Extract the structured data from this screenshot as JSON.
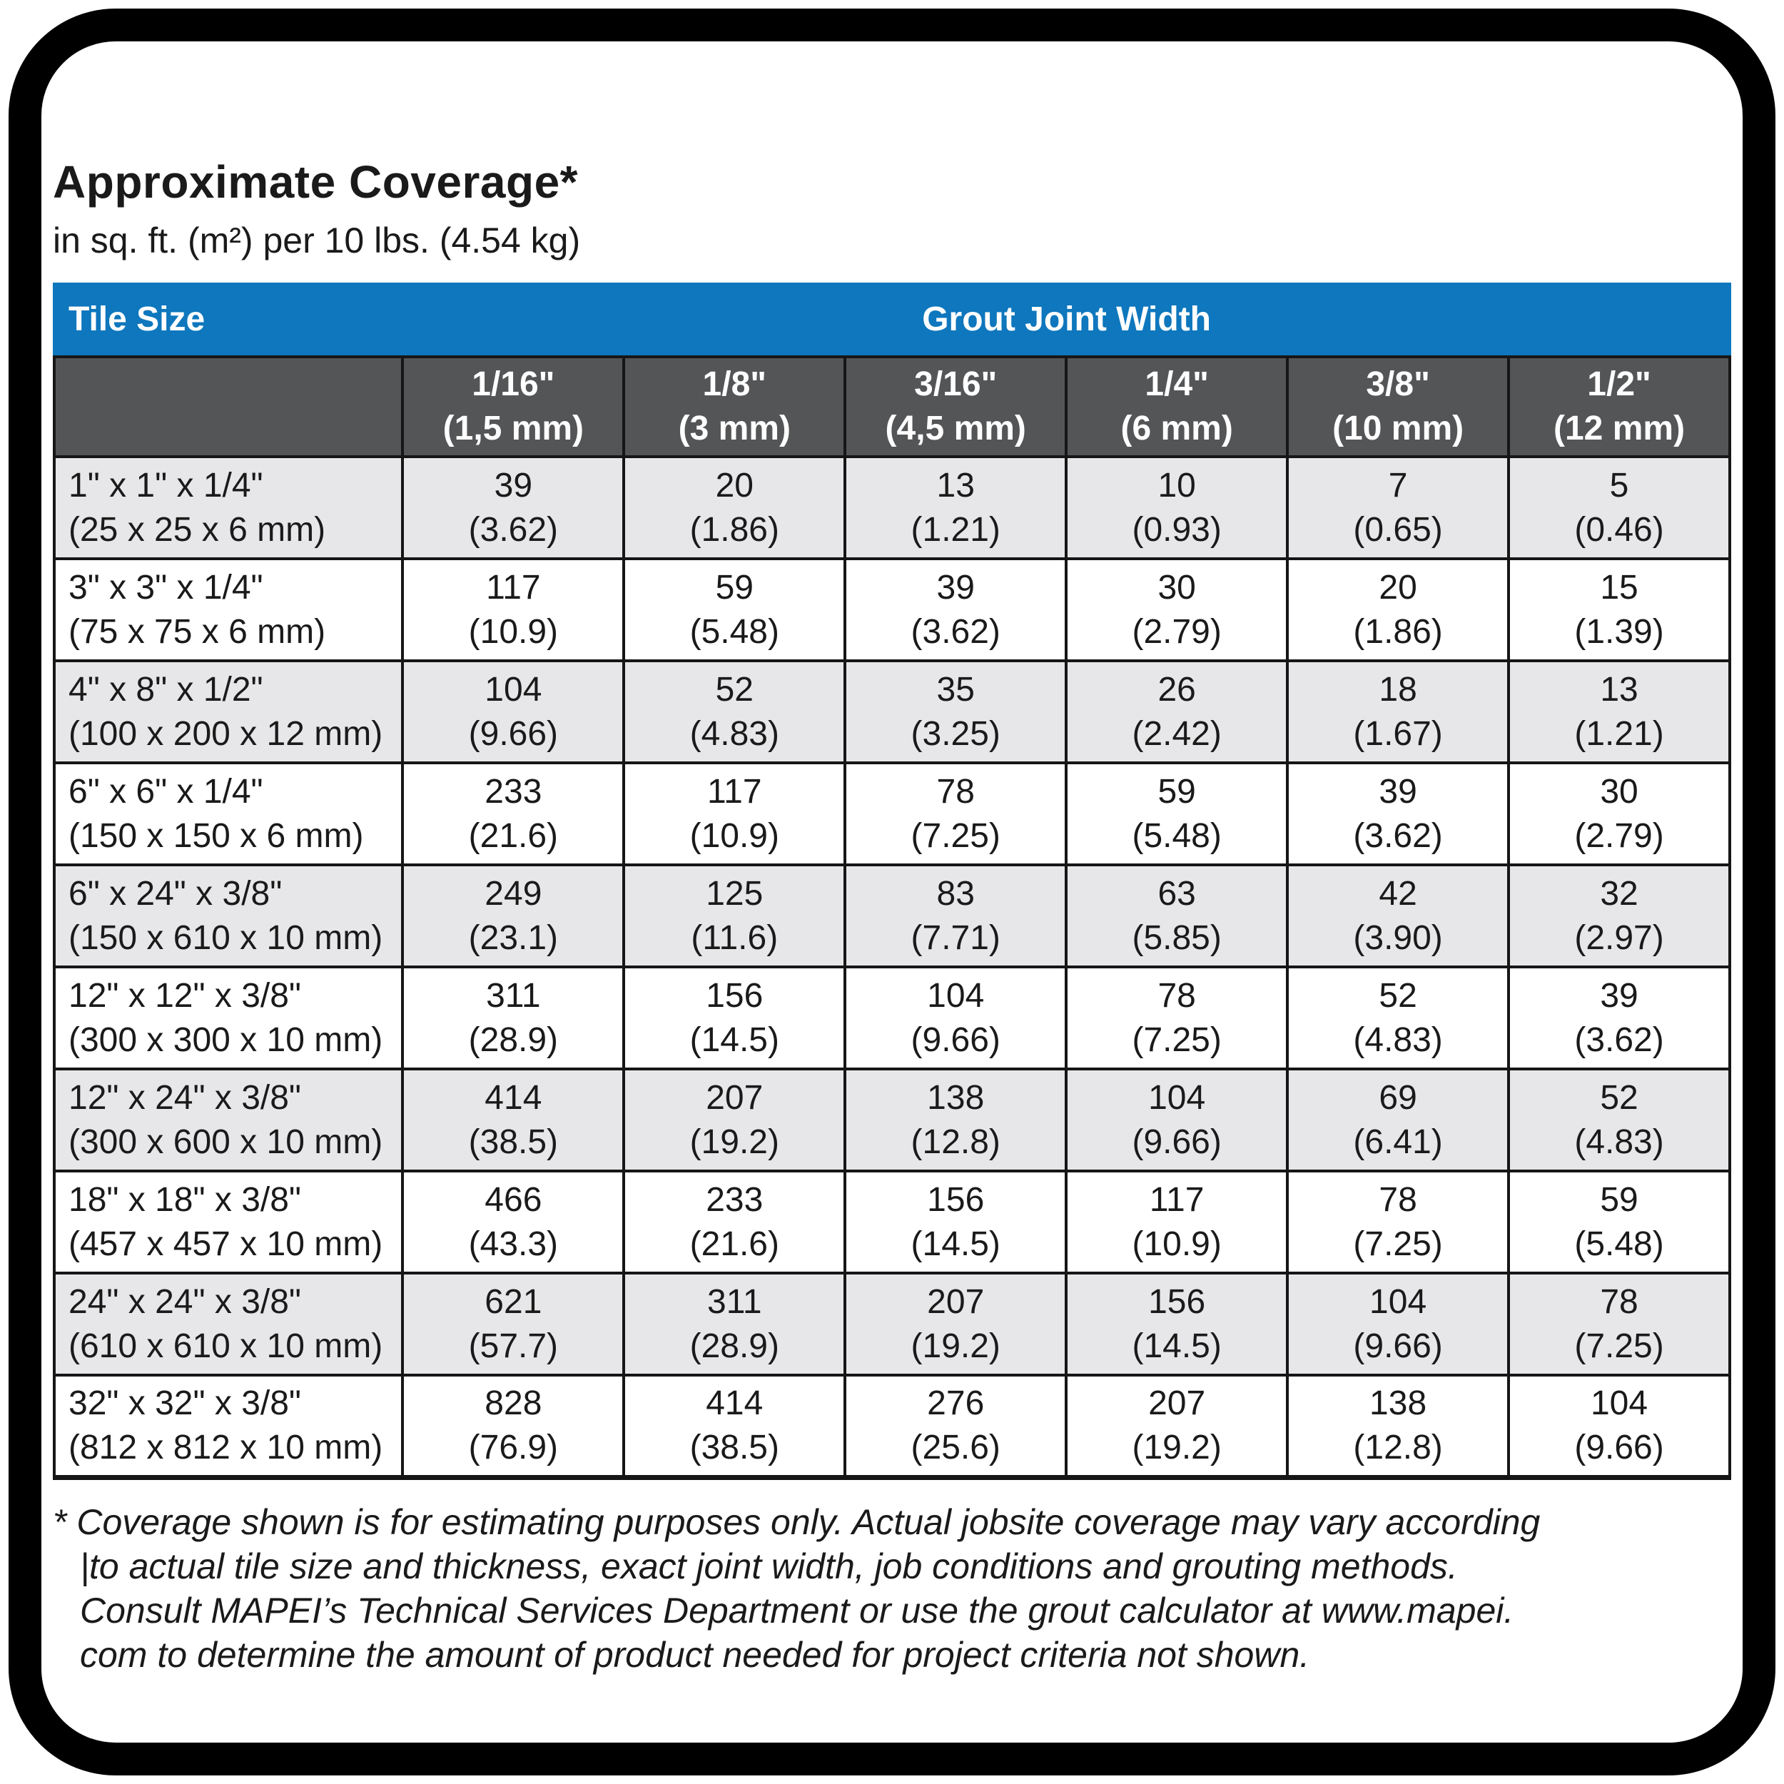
{
  "colors": {
    "accent_blue": "#0e77bd",
    "header_gray": "#545557",
    "row_alt": "#e7e7e9",
    "border_black": "#161616"
  },
  "title": "Approximate Coverage*",
  "subtitle": "in sq. ft. (m²) per 10 lbs. (4.54 kg)",
  "table": {
    "corner_label": "Tile Size",
    "group_label": "Grout Joint Width",
    "columns": [
      {
        "inch": "1/16\"",
        "metric": "(1,5 mm)"
      },
      {
        "inch": "1/8\"",
        "metric": "(3 mm)"
      },
      {
        "inch": "3/16\"",
        "metric": "(4,5 mm)"
      },
      {
        "inch": "1/4\"",
        "metric": "(6 mm)"
      },
      {
        "inch": "3/8\"",
        "metric": "(10 mm)"
      },
      {
        "inch": "1/2\"",
        "metric": "(12 mm)"
      }
    ],
    "rows": [
      {
        "size_in": "1\" x 1\" x 1/4\"",
        "size_mm": "(25 x 25 x 6 mm)",
        "cells": [
          {
            "ft": "39",
            "m": "(3.62)"
          },
          {
            "ft": "20",
            "m": "(1.86)"
          },
          {
            "ft": "13",
            "m": "(1.21)"
          },
          {
            "ft": "10",
            "m": "(0.93)"
          },
          {
            "ft": "7",
            "m": "(0.65)"
          },
          {
            "ft": "5",
            "m": "(0.46)"
          }
        ]
      },
      {
        "size_in": "3\" x 3\" x 1/4\"",
        "size_mm": "(75 x 75 x 6 mm)",
        "cells": [
          {
            "ft": "117",
            "m": "(10.9)"
          },
          {
            "ft": "59",
            "m": "(5.48)"
          },
          {
            "ft": "39",
            "m": "(3.62)"
          },
          {
            "ft": "30",
            "m": "(2.79)"
          },
          {
            "ft": "20",
            "m": "(1.86)"
          },
          {
            "ft": "15",
            "m": "(1.39)"
          }
        ]
      },
      {
        "size_in": "4\" x 8\" x 1/2\"",
        "size_mm": "(100 x 200 x 12 mm)",
        "cells": [
          {
            "ft": "104",
            "m": "(9.66)"
          },
          {
            "ft": "52",
            "m": "(4.83)"
          },
          {
            "ft": "35",
            "m": "(3.25)"
          },
          {
            "ft": "26",
            "m": "(2.42)"
          },
          {
            "ft": "18",
            "m": "(1.67)"
          },
          {
            "ft": "13",
            "m": "(1.21)"
          }
        ]
      },
      {
        "size_in": "6\" x 6\" x 1/4\"",
        "size_mm": "(150 x 150 x 6 mm)",
        "cells": [
          {
            "ft": "233",
            "m": "(21.6)"
          },
          {
            "ft": "117",
            "m": "(10.9)"
          },
          {
            "ft": "78",
            "m": "(7.25)"
          },
          {
            "ft": "59",
            "m": "(5.48)"
          },
          {
            "ft": "39",
            "m": "(3.62)"
          },
          {
            "ft": "30",
            "m": "(2.79)"
          }
        ]
      },
      {
        "size_in": "6\" x 24\" x 3/8\"",
        "size_mm": "(150 x 610 x 10 mm)",
        "cells": [
          {
            "ft": "249",
            "m": "(23.1)"
          },
          {
            "ft": "125",
            "m": "(11.6)"
          },
          {
            "ft": "83",
            "m": "(7.71)"
          },
          {
            "ft": "63",
            "m": "(5.85)"
          },
          {
            "ft": "42",
            "m": "(3.90)"
          },
          {
            "ft": "32",
            "m": "(2.97)"
          }
        ]
      },
      {
        "size_in": "12\" x 12\" x 3/8\"",
        "size_mm": "(300 x 300 x 10 mm)",
        "cells": [
          {
            "ft": "311",
            "m": "(28.9)"
          },
          {
            "ft": "156",
            "m": "(14.5)"
          },
          {
            "ft": "104",
            "m": "(9.66)"
          },
          {
            "ft": "78",
            "m": "(7.25)"
          },
          {
            "ft": "52",
            "m": "(4.83)"
          },
          {
            "ft": "39",
            "m": "(3.62)"
          }
        ]
      },
      {
        "size_in": "12\" x 24\" x 3/8\"",
        "size_mm": "(300 x 600 x 10 mm)",
        "cells": [
          {
            "ft": "414",
            "m": "(38.5)"
          },
          {
            "ft": "207",
            "m": "(19.2)"
          },
          {
            "ft": "138",
            "m": "(12.8)"
          },
          {
            "ft": "104",
            "m": "(9.66)"
          },
          {
            "ft": "69",
            "m": "(6.41)"
          },
          {
            "ft": "52",
            "m": "(4.83)"
          }
        ]
      },
      {
        "size_in": "18\" x 18\" x 3/8\"",
        "size_mm": "(457 x 457 x 10 mm)",
        "cells": [
          {
            "ft": "466",
            "m": "(43.3)"
          },
          {
            "ft": "233",
            "m": "(21.6)"
          },
          {
            "ft": "156",
            "m": "(14.5)"
          },
          {
            "ft": "117",
            "m": "(10.9)"
          },
          {
            "ft": "78",
            "m": "(7.25)"
          },
          {
            "ft": "59",
            "m": "(5.48)"
          }
        ]
      },
      {
        "size_in": "24\" x 24\" x 3/8\"",
        "size_mm": "(610 x 610 x 10 mm)",
        "cells": [
          {
            "ft": "621",
            "m": "(57.7)"
          },
          {
            "ft": "311",
            "m": "(28.9)"
          },
          {
            "ft": "207",
            "m": "(19.2)"
          },
          {
            "ft": "156",
            "m": "(14.5)"
          },
          {
            "ft": "104",
            "m": "(9.66)"
          },
          {
            "ft": "78",
            "m": "(7.25)"
          }
        ]
      },
      {
        "size_in": "32\" x 32\" x 3/8\"",
        "size_mm": "(812 x 812 x 10 mm)",
        "cells": [
          {
            "ft": "828",
            "m": "(76.9)"
          },
          {
            "ft": "414",
            "m": "(38.5)"
          },
          {
            "ft": "276",
            "m": "(25.6)"
          },
          {
            "ft": "207",
            "m": "(19.2)"
          },
          {
            "ft": "138",
            "m": "(12.8)"
          },
          {
            "ft": "104",
            "m": "(9.66)"
          }
        ]
      }
    ]
  },
  "footnote": {
    "lines": [
      "* Coverage shown is for estimating purposes only. Actual jobsite coverage may vary according",
      "|to actual tile size and thickness, exact joint width, job conditions and grouting methods.",
      "Consult MAPEI’s Technical Services Department or use the grout calculator at www.mapei.",
      "com to determine the amount of product needed for project criteria not shown."
    ]
  }
}
